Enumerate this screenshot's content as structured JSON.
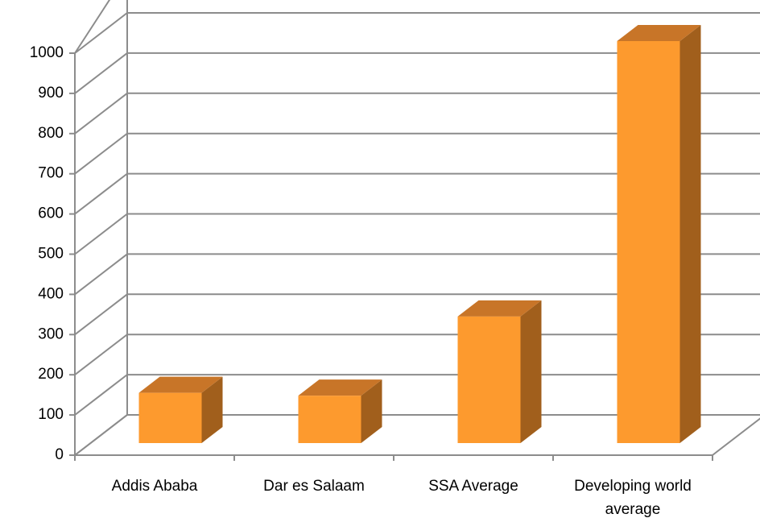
{
  "chart_data": {
    "type": "bar3d",
    "categories": [
      "Addis Ababa",
      "Dar es Salaam",
      "SSA Average",
      "Developing world average"
    ],
    "values": [
      125,
      118,
      315,
      1000
    ],
    "color": "#fd9a2e",
    "ylim": [
      0,
      1000
    ],
    "yticks": [
      0,
      100,
      200,
      300,
      400,
      500,
      600,
      700,
      800,
      900,
      1000
    ],
    "grid": true
  }
}
